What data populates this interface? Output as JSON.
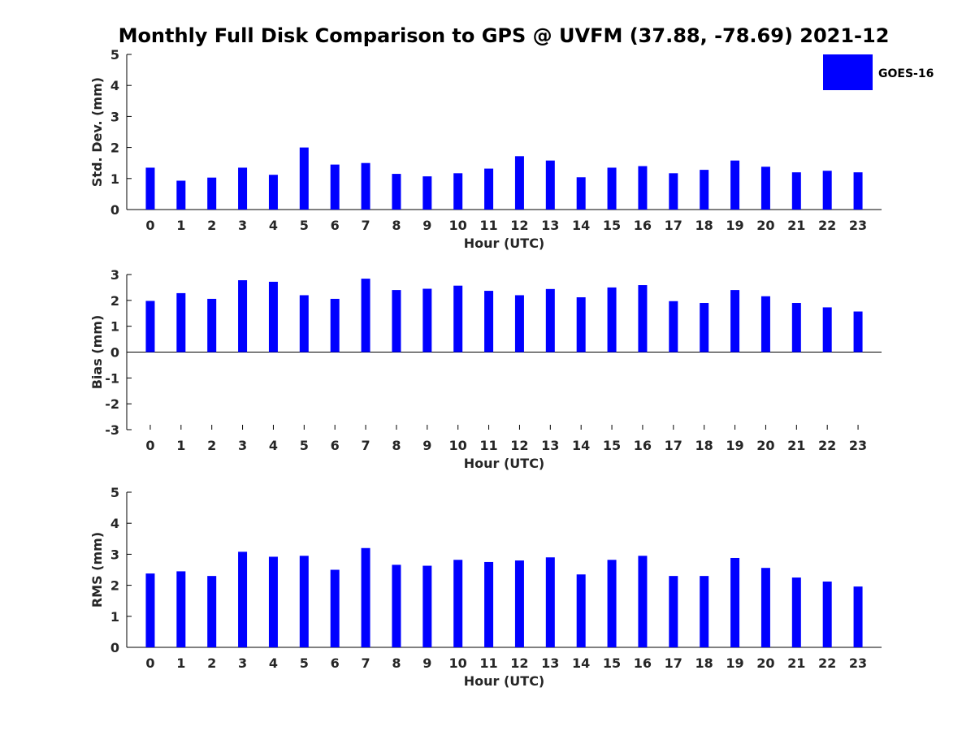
{
  "title": "Monthly Full Disk Comparison to GPS @ UVFM (37.88, -78.69) 2021-12",
  "legend": {
    "label": "GOES-16",
    "color": "#0000ff"
  },
  "chart_data": [
    {
      "type": "bar",
      "title": "Monthly Full Disk Comparison to GPS @ UVFM (37.88, -78.69) 2021-12",
      "xlabel": "Hour (UTC)",
      "ylabel": "Std. Dev. (mm)",
      "ylim": [
        0,
        5
      ],
      "yticks": [
        "0",
        "1",
        "2",
        "3",
        "4",
        "5"
      ],
      "categories": [
        "0",
        "1",
        "2",
        "3",
        "4",
        "5",
        "6",
        "7",
        "8",
        "9",
        "10",
        "11",
        "12",
        "13",
        "14",
        "15",
        "16",
        "17",
        "18",
        "19",
        "20",
        "21",
        "22",
        "23"
      ],
      "series": [
        {
          "name": "GOES-16",
          "values": [
            1.35,
            0.93,
            1.03,
            1.35,
            1.12,
            2.0,
            1.45,
            1.5,
            1.15,
            1.07,
            1.17,
            1.32,
            1.72,
            1.58,
            1.04,
            1.35,
            1.4,
            1.17,
            1.28,
            1.58,
            1.38,
            1.2,
            1.25,
            1.2
          ]
        }
      ],
      "legend": "top-right"
    },
    {
      "type": "bar",
      "xlabel": "Hour (UTC)",
      "ylabel": "Bias (mm)",
      "ylim": [
        -3,
        3
      ],
      "yticks": [
        "-3",
        "-2",
        "-1",
        "0",
        "1",
        "2",
        "3"
      ],
      "categories": [
        "0",
        "1",
        "2",
        "3",
        "4",
        "5",
        "6",
        "7",
        "8",
        "9",
        "10",
        "11",
        "12",
        "13",
        "14",
        "15",
        "16",
        "17",
        "18",
        "19",
        "20",
        "21",
        "22",
        "23"
      ],
      "series": [
        {
          "name": "GOES-16",
          "values": [
            1.98,
            2.28,
            2.06,
            2.78,
            2.72,
            2.2,
            2.06,
            2.84,
            2.4,
            2.45,
            2.57,
            2.37,
            2.2,
            2.44,
            2.12,
            2.5,
            2.59,
            1.97,
            1.9,
            2.4,
            2.16,
            1.9,
            1.73,
            1.57
          ]
        }
      ]
    },
    {
      "type": "bar",
      "xlabel": "Hour (UTC)",
      "ylabel": "RMS (mm)",
      "ylim": [
        0,
        5
      ],
      "yticks": [
        "0",
        "1",
        "2",
        "3",
        "4",
        "5"
      ],
      "categories": [
        "0",
        "1",
        "2",
        "3",
        "4",
        "5",
        "6",
        "7",
        "8",
        "9",
        "10",
        "11",
        "12",
        "13",
        "14",
        "15",
        "16",
        "17",
        "18",
        "19",
        "20",
        "21",
        "22",
        "23"
      ],
      "series": [
        {
          "name": "GOES-16",
          "values": [
            2.38,
            2.45,
            2.3,
            3.08,
            2.92,
            2.95,
            2.5,
            3.2,
            2.66,
            2.63,
            2.82,
            2.75,
            2.8,
            2.9,
            2.35,
            2.82,
            2.95,
            2.3,
            2.3,
            2.88,
            2.56,
            2.25,
            2.12,
            1.96
          ]
        }
      ]
    }
  ]
}
